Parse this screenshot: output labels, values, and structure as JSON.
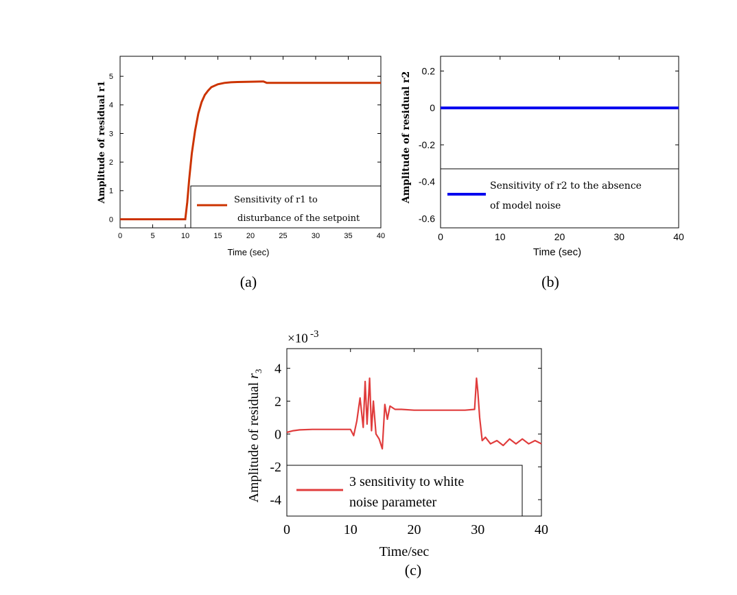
{
  "chart_data": [
    {
      "panel": "(a)",
      "type": "line",
      "xlabel": "Time (sec)",
      "ylabel": "Amplitude of residual r1",
      "xlim": [
        0,
        40
      ],
      "ylim": [
        -0.3,
        5.7
      ],
      "xticks": [
        0,
        5,
        10,
        15,
        20,
        25,
        30,
        35,
        40
      ],
      "yticks": [
        0,
        1,
        2,
        3,
        4,
        5
      ],
      "grid": false,
      "legend_position": "bottom-right",
      "series": [
        {
          "name": "Sensitivity of r1 to disturbance of the setpoint",
          "color": "#cc3300",
          "x": [
            0,
            10.0,
            10.3,
            10.6,
            11.0,
            11.5,
            12.0,
            12.5,
            13.0,
            13.5,
            14.0,
            15.0,
            16.0,
            17.0,
            18.0,
            20.0,
            22.0,
            22.5,
            25,
            30,
            35,
            40
          ],
          "y": [
            0,
            0,
            0.6,
            1.4,
            2.3,
            3.1,
            3.7,
            4.1,
            4.35,
            4.5,
            4.62,
            4.72,
            4.77,
            4.79,
            4.8,
            4.81,
            4.82,
            4.77,
            4.77,
            4.77,
            4.77,
            4.77
          ]
        }
      ]
    },
    {
      "panel": "(b)",
      "type": "line",
      "xlabel": "Time (sec)",
      "ylabel": "Amplitude of residual r2",
      "xlim": [
        0,
        40
      ],
      "ylim": [
        -0.65,
        0.28
      ],
      "xticks": [
        0,
        10,
        20,
        30,
        40
      ],
      "yticks": [
        0.2,
        0,
        -0.2,
        -0.4,
        -0.6
      ],
      "grid": false,
      "legend_position": "bottom",
      "series": [
        {
          "name": "Sensitivity of r2 to the absence of model noise",
          "color": "#0000ee",
          "x": [
            0,
            40
          ],
          "y": [
            0,
            0
          ]
        }
      ]
    },
    {
      "panel": "(c)",
      "type": "line",
      "xlabel": "Time/sec",
      "ylabel": "Amplitude of residual r3",
      "multiplier": "×10-3",
      "xlim": [
        0,
        40
      ],
      "ylim": [
        -5,
        5.2
      ],
      "xticks": [
        0,
        10,
        20,
        30,
        40
      ],
      "yticks": [
        4,
        2,
        0,
        -2,
        -4
      ],
      "grid": false,
      "legend_position": "bottom",
      "series": [
        {
          "name": "3 sensitivity to white noise parameter",
          "color": "#e03c3c",
          "x": [
            0,
            1,
            2,
            4,
            6,
            8,
            10,
            10.5,
            11,
            11.5,
            12,
            12.3,
            12.6,
            13,
            13.3,
            13.6,
            14,
            14.5,
            15,
            15.4,
            15.8,
            16.2,
            17,
            18,
            20,
            22,
            24,
            26,
            28,
            29.5,
            29.8,
            30.0,
            30.3,
            30.7,
            31.2,
            32,
            33,
            34,
            35,
            36,
            37,
            38,
            39,
            40
          ],
          "y": [
            0.1,
            0.2,
            0.25,
            0.28,
            0.28,
            0.28,
            0.28,
            -0.1,
            0.8,
            2.2,
            0.4,
            3.2,
            0.6,
            3.4,
            0.2,
            2.0,
            0.0,
            -0.3,
            -0.9,
            1.8,
            0.9,
            1.7,
            1.5,
            1.5,
            1.45,
            1.45,
            1.45,
            1.45,
            1.45,
            1.5,
            3.4,
            2.6,
            1.0,
            -0.4,
            -0.2,
            -0.6,
            -0.4,
            -0.7,
            -0.3,
            -0.6,
            -0.3,
            -0.6,
            -0.4,
            -0.6
          ]
        }
      ]
    }
  ],
  "captions": {
    "a": "(a)",
    "b": "(b)",
    "c": "(c)"
  }
}
